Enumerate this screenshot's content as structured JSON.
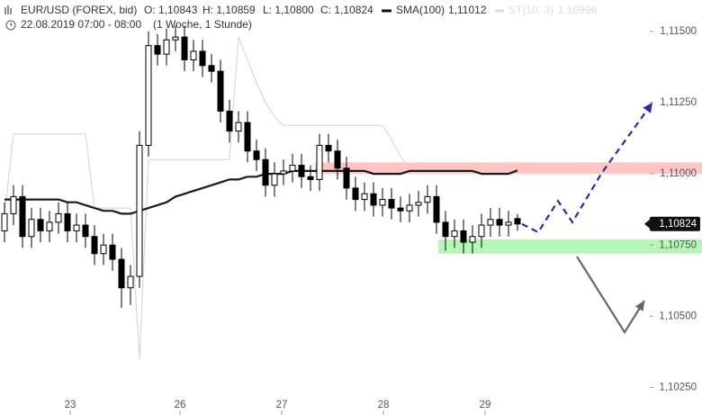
{
  "header": {
    "symbol": "EUR/USD (FOREX, bid)",
    "open": "O: 1,10843",
    "high": "H: 1,10859",
    "low": "L: 1,10800",
    "close": "C: 1,10824",
    "sma_label": "SMA(100)",
    "sma_value": "1,11012",
    "st_label": "ST(10, 3)",
    "st_value": "1,10996",
    "period": "22.08.2019 07:00 - 08:00",
    "range": "(1 Woche, 1 Stunde)"
  },
  "chart_data": {
    "type": "candlestick",
    "xlim": [
      -0.5,
      77.5
    ],
    "xticks": [
      {
        "value": 7.3,
        "label": "23"
      },
      {
        "value": 19.5,
        "label": "26"
      },
      {
        "value": 30.8,
        "label": "27"
      },
      {
        "value": 42.1,
        "label": "28"
      },
      {
        "value": 53.4,
        "label": "29"
      }
    ],
    "ylim": [
      1.1022,
      1.1161
    ],
    "yticks": [
      {
        "value": 1.1025,
        "label": "1,10250"
      },
      {
        "value": 1.105,
        "label": "1,10500"
      },
      {
        "value": 1.1075,
        "label": "1,10750"
      },
      {
        "value": 1.11,
        "label": "1,11000"
      },
      {
        "value": 1.1125,
        "label": "1,11250"
      },
      {
        "value": 1.115,
        "label": "1,11500"
      }
    ],
    "open": [
      1.108,
      1.1086,
      1.1092,
      1.1078,
      1.1084,
      1.108,
      1.1083,
      1.1086,
      1.108,
      1.1082,
      1.1078,
      1.1072,
      1.1075,
      1.107,
      1.106,
      1.1064,
      1.111,
      1.1145,
      1.1142,
      1.1147,
      1.1148,
      1.114,
      1.1143,
      1.1138,
      1.1136,
      1.1122,
      1.1115,
      1.1118,
      1.1108,
      1.1105,
      1.1096,
      1.11,
      1.1101,
      1.1103,
      1.1099,
      1.1098,
      1.111,
      1.1108,
      1.1102,
      1.1095,
      1.1091,
      1.1093,
      1.1089,
      1.1091,
      1.1088,
      1.1087,
      1.1089,
      1.109,
      1.1092,
      1.1083,
      1.1078,
      1.108,
      1.1076,
      1.1078,
      1.1082,
      1.1084,
      1.1082,
      1.10843
    ],
    "high": [
      1.109,
      1.1096,
      1.1096,
      1.1088,
      1.1088,
      1.1087,
      1.109,
      1.109,
      1.1086,
      1.1086,
      1.1082,
      1.1079,
      1.1079,
      1.1074,
      1.1068,
      1.1115,
      1.115,
      1.1149,
      1.1151,
      1.1152,
      1.1152,
      1.1147,
      1.1147,
      1.1142,
      1.114,
      1.1126,
      1.1122,
      1.1122,
      1.1112,
      1.1109,
      1.1104,
      1.1105,
      1.1107,
      1.1107,
      1.1103,
      1.1114,
      1.1114,
      1.1112,
      1.1106,
      1.1099,
      1.1097,
      1.1097,
      1.1095,
      1.1095,
      1.1092,
      1.1093,
      1.1094,
      1.1096,
      1.1096,
      1.1087,
      1.1084,
      1.1084,
      1.1082,
      1.1086,
      1.1088,
      1.1088,
      1.1087,
      1.10859
    ],
    "low": [
      1.1076,
      1.1082,
      1.1074,
      1.1074,
      1.1076,
      1.1076,
      1.1079,
      1.1076,
      1.1076,
      1.1074,
      1.1068,
      1.1068,
      1.1066,
      1.1053,
      1.1054,
      1.106,
      1.1106,
      1.1138,
      1.1138,
      1.1143,
      1.1136,
      1.1136,
      1.1134,
      1.1132,
      1.1118,
      1.1111,
      1.1111,
      1.1104,
      1.1101,
      1.1092,
      1.1092,
      1.1096,
      1.1097,
      1.1095,
      1.1094,
      1.1094,
      1.1104,
      1.1098,
      1.1091,
      1.1087,
      1.1087,
      1.1085,
      1.1085,
      1.1084,
      1.1083,
      1.1083,
      1.1085,
      1.1086,
      1.1079,
      1.1073,
      1.1074,
      1.1072,
      1.1072,
      1.1074,
      1.1078,
      1.1078,
      1.1078,
      1.108
    ],
    "close": [
      1.1086,
      1.1092,
      1.1078,
      1.1084,
      1.108,
      1.1083,
      1.1086,
      1.108,
      1.1082,
      1.1078,
      1.1072,
      1.1075,
      1.107,
      1.106,
      1.1064,
      1.111,
      1.1145,
      1.1142,
      1.1147,
      1.1148,
      1.114,
      1.1143,
      1.1138,
      1.1136,
      1.1122,
      1.1115,
      1.1118,
      1.1108,
      1.1105,
      1.1096,
      1.11,
      1.1101,
      1.1103,
      1.1099,
      1.1098,
      1.111,
      1.1108,
      1.1102,
      1.1095,
      1.1091,
      1.1093,
      1.1089,
      1.1091,
      1.1088,
      1.1087,
      1.1089,
      1.109,
      1.1092,
      1.1083,
      1.1078,
      1.108,
      1.1076,
      1.1078,
      1.1082,
      1.1084,
      1.1082,
      1.1083,
      1.10824
    ],
    "up_color": "#ffffff",
    "down_color": "#000000",
    "series": [
      {
        "name": "SMA(100)",
        "color": "#1a1a1a",
        "values": [
          1.1091,
          1.1091,
          1.1091,
          1.1091,
          1.1091,
          1.1091,
          1.1091,
          1.109,
          1.109,
          1.1089,
          1.1088,
          1.1087,
          1.1087,
          1.1086,
          1.1086,
          1.1087,
          1.1088,
          1.1089,
          1.109,
          1.1092,
          1.1093,
          1.1094,
          1.1095,
          1.1096,
          1.1097,
          1.1098,
          1.1098,
          1.1099,
          1.1099,
          1.11,
          1.11,
          1.11,
          1.1101,
          1.1101,
          1.1101,
          1.1101,
          1.1101,
          1.1101,
          1.1101,
          1.1101,
          1.1101,
          1.11,
          1.11,
          1.11,
          1.11,
          1.1101,
          1.1101,
          1.1101,
          1.1101,
          1.1101,
          1.1101,
          1.1101,
          1.1101,
          1.11,
          1.11,
          1.11,
          1.11,
          1.11012
        ]
      },
      {
        "name": "ST(10, 3)",
        "color": "#d8d8d8",
        "values": [
          1.1086,
          1.1114,
          1.1114,
          1.1114,
          1.1114,
          1.1114,
          1.1114,
          1.1114,
          1.1114,
          1.1114,
          1.1088,
          1.1088,
          1.1088,
          1.1088,
          1.1088,
          1.1035,
          1.1105,
          1.1105,
          1.1105,
          1.1105,
          1.1105,
          1.1105,
          1.1105,
          1.1105,
          1.1105,
          1.1105,
          1.1148,
          1.114,
          1.1132,
          1.1125,
          1.112,
          1.1117,
          1.1117,
          1.1117,
          1.1117,
          1.1117,
          1.1117,
          1.1117,
          1.1117,
          1.1117,
          1.1117,
          1.1117,
          1.1117,
          1.1112,
          1.1106,
          1.1102,
          null,
          null,
          null,
          null,
          null,
          null,
          null,
          null,
          null,
          null,
          null,
          null
        ]
      }
    ],
    "last_price": {
      "value": 1.10824,
      "label": "1,10824"
    },
    "zones": [
      {
        "color": "#ffc4c4",
        "from": 34.5,
        "range": [
          1.11,
          1.1104
        ]
      },
      {
        "color": "#b8f5b8",
        "from": 48.2,
        "range": [
          1.1072,
          1.1077
        ]
      }
    ],
    "projections": [
      {
        "color": "#2b2b9a",
        "dashed": true,
        "x": [
          57.5,
          59.3,
          61.5,
          63.1,
          66.3,
          72.0
        ],
        "values": [
          1.10824,
          1.10795,
          1.10905,
          1.1083,
          1.11,
          1.1125
        ]
      },
      {
        "color": "#666666",
        "dashed": false,
        "x": [
          63.6,
          68.9,
          71.1
        ],
        "values": [
          1.1071,
          1.10444,
          1.10555
        ]
      }
    ]
  }
}
